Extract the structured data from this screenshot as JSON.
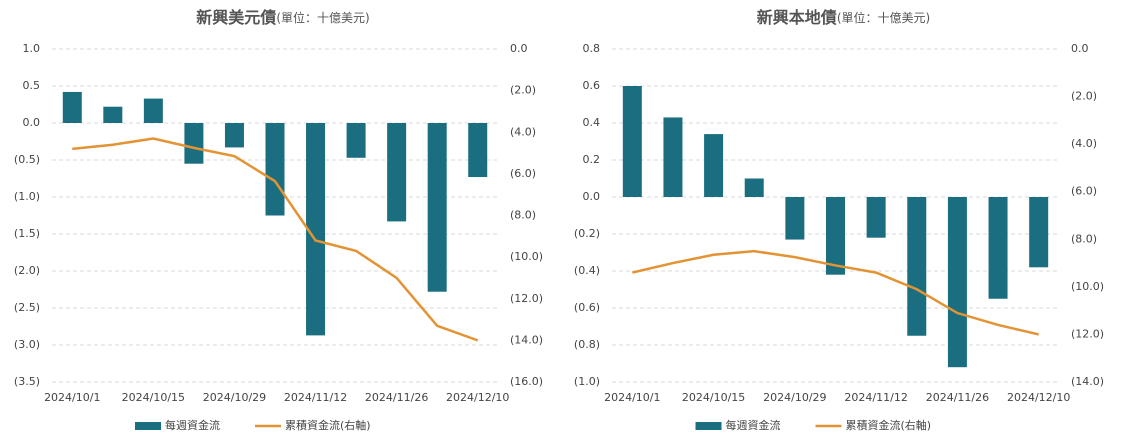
{
  "chart_data": [
    {
      "type": "bar_line",
      "title": "新興美元債",
      "subtitle": "(單位：十億美元)",
      "categories": [
        "2024/10/1",
        null,
        "2024/10/15",
        null,
        "2024/10/29",
        null,
        "2024/11/12",
        null,
        "2024/11/26",
        null,
        "2024/12/10"
      ],
      "series": [
        {
          "name": "每週資金流",
          "color": "#1a6e80",
          "values": [
            0.42,
            0.22,
            0.33,
            -0.55,
            -0.33,
            -1.25,
            -2.87,
            -0.47,
            -1.33,
            -2.28,
            -0.73
          ]
        },
        {
          "name": "累積資金流(右軸)",
          "color": "#e39333",
          "axis": "y2",
          "values": [
            -4.8,
            -4.6,
            -4.3,
            -4.75,
            -5.15,
            -6.35,
            -9.2,
            -9.7,
            -11.0,
            -13.3,
            -14.0
          ]
        }
      ],
      "ylim": [
        -3.5,
        1.0
      ],
      "yticks": [
        {
          "value": 1.0,
          "label": "1.0"
        },
        {
          "value": 0.5,
          "label": "0.5"
        },
        {
          "value": 0,
          "label": "0.0"
        },
        {
          "value": -0.5,
          "label": "(0.5)"
        },
        {
          "value": -1.0,
          "label": "(1.0)"
        },
        {
          "value": -1.5,
          "label": "(1.5)"
        },
        {
          "value": -2.0,
          "label": "(2.0)"
        },
        {
          "value": -2.5,
          "label": "(2.5)"
        },
        {
          "value": -3.0,
          "label": "(3.0)"
        },
        {
          "value": -3.5,
          "label": "(3.5)"
        }
      ],
      "y2lim": [
        -16,
        0
      ],
      "y2ticks": [
        {
          "value": 0,
          "label": "0.0"
        },
        {
          "value": -2,
          "label": "(2.0)"
        },
        {
          "value": -4,
          "label": "(4.0)"
        },
        {
          "value": -6,
          "label": "(6.0)"
        },
        {
          "value": -8,
          "label": "(8.0)"
        },
        {
          "value": -10,
          "label": "(10.0)"
        },
        {
          "value": -12,
          "label": "(12.0)"
        },
        {
          "value": -14,
          "label": "(14.0)"
        },
        {
          "value": -16,
          "label": "(16.0)"
        }
      ],
      "y2_negative_color": "#c00000",
      "grid": true,
      "legend": "bottom"
    },
    {
      "type": "bar_line",
      "title": "新興本地債",
      "subtitle": "(單位：十億美元)",
      "categories": [
        "2024/10/1",
        null,
        "2024/10/15",
        null,
        "2024/10/29",
        null,
        "2024/11/12",
        null,
        "2024/11/26",
        null,
        "2024/12/10"
      ],
      "series": [
        {
          "name": "每週資金流",
          "color": "#1a6e80",
          "values": [
            0.6,
            0.43,
            0.34,
            0.1,
            -0.23,
            -0.42,
            -0.22,
            -0.75,
            -0.92,
            -0.55,
            -0.38
          ]
        },
        {
          "name": "累積資金流(右軸)",
          "color": "#e39333",
          "axis": "y2",
          "values": [
            -9.4,
            -9.0,
            -8.65,
            -8.5,
            -8.75,
            -9.1,
            -9.4,
            -10.1,
            -11.1,
            -11.6,
            -12.0
          ]
        }
      ],
      "ylim": [
        -1.0,
        0.8
      ],
      "yticks": [
        {
          "value": 0.8,
          "label": "0.8"
        },
        {
          "value": 0.6,
          "label": "0.6"
        },
        {
          "value": 0.4,
          "label": "0.4"
        },
        {
          "value": 0.2,
          "label": "0.2"
        },
        {
          "value": 0,
          "label": "0.0"
        },
        {
          "value": -0.2,
          "label": "(0.2)"
        },
        {
          "value": -0.4,
          "label": "(0.4)"
        },
        {
          "value": -0.6,
          "label": "(0.6)"
        },
        {
          "value": -0.8,
          "label": "(0.8)"
        },
        {
          "value": -1.0,
          "label": "(1.0)"
        }
      ],
      "y2lim": [
        -14,
        0
      ],
      "y2ticks": [
        {
          "value": 0,
          "label": "0.0"
        },
        {
          "value": -2,
          "label": "(2.0)"
        },
        {
          "value": -4,
          "label": "(4.0)"
        },
        {
          "value": -6,
          "label": "(6.0)"
        },
        {
          "value": -8,
          "label": "(8.0)"
        },
        {
          "value": -10,
          "label": "(10.0)"
        },
        {
          "value": -12,
          "label": "(12.0)"
        },
        {
          "value": -14,
          "label": "(14.0)"
        }
      ],
      "y2_negative_color": "#c00000",
      "grid": true,
      "legend": "bottom"
    }
  ]
}
